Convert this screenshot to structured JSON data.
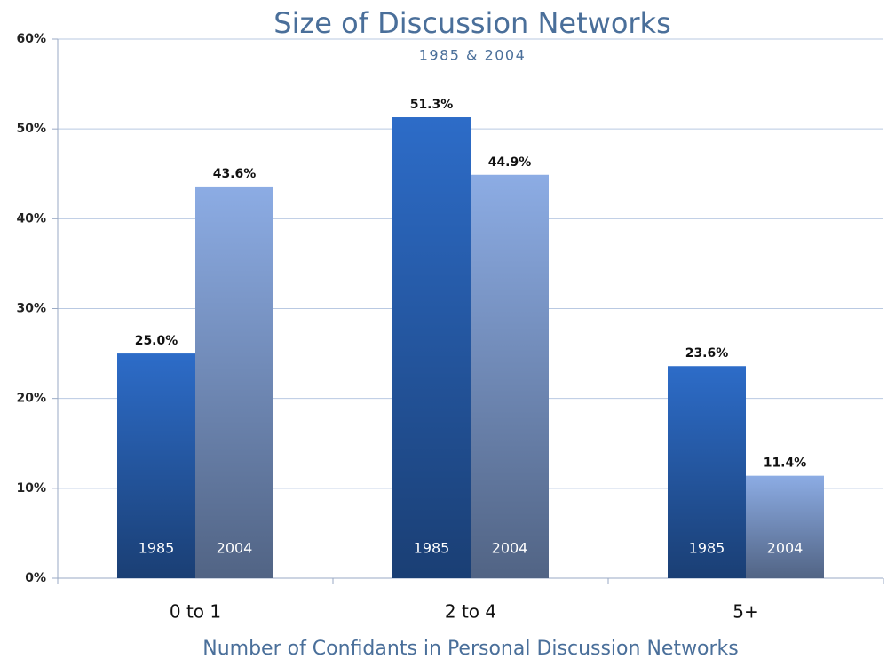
{
  "chart_data": {
    "type": "bar",
    "title": "Size of Discussion Networks",
    "subtitle": "1985 & 2004",
    "x_label": "Number of Confidants in Personal Discussion Networks",
    "categories": [
      "0 to 1",
      "2 to 4",
      "5+"
    ],
    "series": [
      {
        "name": "1985",
        "color": "#2d6cc8",
        "values": [
          25.0,
          51.3,
          23.6
        ],
        "value_labels": [
          "25.0%",
          "51.3%",
          "23.6%"
        ]
      },
      {
        "name": "2004",
        "color": "#8cace4",
        "values": [
          43.6,
          44.9,
          11.4
        ],
        "value_labels": [
          "43.6%",
          "44.9%",
          "11.4%"
        ]
      }
    ],
    "ylim": [
      0,
      60
    ],
    "yticks": [
      {
        "value": 0,
        "label": "0%"
      },
      {
        "value": 10,
        "label": "10%"
      },
      {
        "value": 20,
        "label": "20%"
      },
      {
        "value": 30,
        "label": "30%"
      },
      {
        "value": 40,
        "label": "40%"
      },
      {
        "value": 50,
        "label": "50%"
      },
      {
        "value": 60,
        "label": "60%"
      }
    ],
    "grid": true
  }
}
